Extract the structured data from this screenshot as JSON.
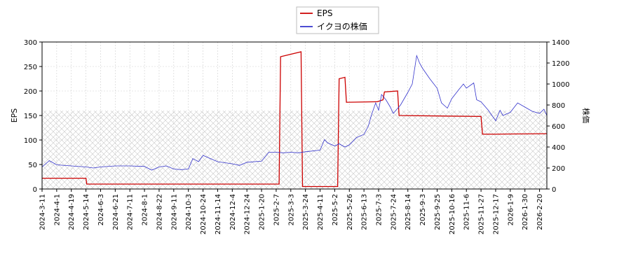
{
  "chart_data": {
    "type": "line",
    "legend": {
      "placement": "top-center"
    },
    "hatch_band": {
      "y_from": 0,
      "y_to": 160,
      "axis": "left"
    },
    "x_ticks": [
      "2024-3-11",
      "2024-4-1",
      "2024-4-19",
      "2024-5-14",
      "2024-6-3",
      "2024-6-21",
      "2024-7-11",
      "2024-8-1",
      "2024-8-22",
      "2024-9-11",
      "2024-10-3",
      "2024-10-24",
      "2024-11-14",
      "2024-12-4",
      "2024-12-24",
      "2025-1-20",
      "2025-2-7",
      "2025-3-3",
      "2025-3-24",
      "2025-4-11",
      "2025-5-2",
      "2025-5-26",
      "2025-6-13",
      "2025-7-3",
      "2025-7-24",
      "2025-8-14",
      "2025-9-3",
      "2025-9-25",
      "2025-10-16",
      "2025-11-6",
      "2025-11-27",
      "2025-12-17",
      "2026-1-9",
      "2026-1-30",
      "2026-2-20"
    ],
    "y_left": {
      "label": "EPS",
      "range": [
        0,
        300
      ],
      "ticks": [
        0,
        50,
        100,
        150,
        200,
        250,
        300
      ]
    },
    "y_right": {
      "label": "株価",
      "range": [
        0,
        1400
      ],
      "ticks": [
        0,
        200,
        400,
        600,
        800,
        1000,
        1200,
        1400
      ]
    },
    "series": [
      {
        "name": "EPS",
        "axis": "left",
        "color": "#cc0000",
        "points": [
          [
            0,
            22
          ],
          [
            3,
            22
          ],
          [
            3.05,
            10
          ],
          [
            16.2,
            10
          ],
          [
            16.3,
            270
          ],
          [
            17.7,
            280
          ],
          [
            17.8,
            5
          ],
          [
            20.2,
            5
          ],
          [
            20.3,
            225
          ],
          [
            20.7,
            228
          ],
          [
            20.8,
            177
          ],
          [
            22.8,
            178
          ],
          [
            22.9,
            178
          ],
          [
            23.3,
            182
          ],
          [
            23.4,
            198
          ],
          [
            24.3,
            200
          ],
          [
            24.4,
            150
          ],
          [
            30,
            148
          ],
          [
            30.1,
            112
          ],
          [
            31,
            112
          ],
          [
            35,
            113
          ]
        ]
      },
      {
        "name": "イクヨの株価",
        "axis": "right",
        "color": "#3333cc",
        "points": [
          [
            0,
            210
          ],
          [
            0.5,
            270
          ],
          [
            1,
            230
          ],
          [
            2,
            220
          ],
          [
            3,
            210
          ],
          [
            3.5,
            200
          ],
          [
            4,
            210
          ],
          [
            5,
            220
          ],
          [
            6,
            220
          ],
          [
            7,
            215
          ],
          [
            7.5,
            180
          ],
          [
            8,
            210
          ],
          [
            8.5,
            220
          ],
          [
            9,
            190
          ],
          [
            9.5,
            185
          ],
          [
            10,
            190
          ],
          [
            10.3,
            290
          ],
          [
            10.7,
            260
          ],
          [
            11,
            320
          ],
          [
            11.5,
            290
          ],
          [
            12,
            260
          ],
          [
            13,
            240
          ],
          [
            13.5,
            225
          ],
          [
            14,
            255
          ],
          [
            15,
            265
          ],
          [
            15.5,
            350
          ],
          [
            16,
            350
          ],
          [
            16.5,
            345
          ],
          [
            17,
            350
          ],
          [
            17.5,
            345
          ],
          [
            18,
            355
          ],
          [
            19,
            370
          ],
          [
            19.3,
            470
          ],
          [
            19.5,
            440
          ],
          [
            20,
            410
          ],
          [
            20.3,
            430
          ],
          [
            20.7,
            400
          ],
          [
            21,
            420
          ],
          [
            21.5,
            490
          ],
          [
            22,
            520
          ],
          [
            22.3,
            600
          ],
          [
            22.5,
            700
          ],
          [
            22.8,
            820
          ],
          [
            23,
            750
          ],
          [
            23.2,
            900
          ],
          [
            23.5,
            850
          ],
          [
            23.8,
            780
          ],
          [
            24,
            720
          ],
          [
            24.5,
            800
          ],
          [
            25,
            920
          ],
          [
            25.3,
            1000
          ],
          [
            25.6,
            1270
          ],
          [
            25.8,
            1200
          ],
          [
            26,
            1150
          ],
          [
            26.5,
            1050
          ],
          [
            27,
            960
          ],
          [
            27.3,
            820
          ],
          [
            27.7,
            770
          ],
          [
            28,
            860
          ],
          [
            28.5,
            950
          ],
          [
            28.8,
            1000
          ],
          [
            29,
            960
          ],
          [
            29.5,
            1010
          ],
          [
            29.7,
            850
          ],
          [
            30,
            830
          ],
          [
            30.5,
            750
          ],
          [
            31,
            650
          ],
          [
            31.3,
            750
          ],
          [
            31.5,
            700
          ],
          [
            32,
            730
          ],
          [
            32.5,
            820
          ],
          [
            33,
            780
          ],
          [
            33.5,
            740
          ],
          [
            34,
            720
          ],
          [
            34.3,
            760
          ],
          [
            34.5,
            700
          ],
          [
            35,
            650
          ]
        ]
      }
    ]
  }
}
